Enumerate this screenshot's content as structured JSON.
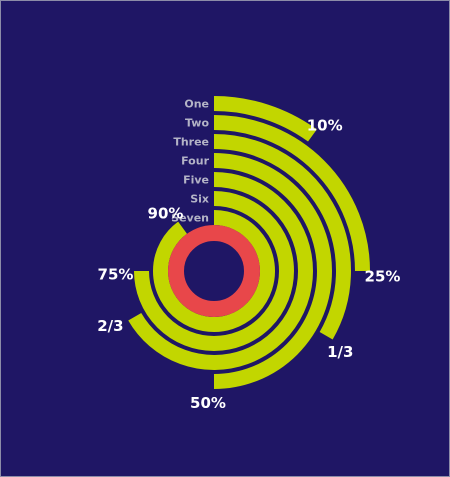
{
  "chart_data": {
    "type": "radial-bar",
    "title": "",
    "categories": [
      "One",
      "Two",
      "Three",
      "Four",
      "Five",
      "Six",
      "Seven"
    ],
    "series": [
      {
        "values": [
          0.1,
          0.25,
          0.3333,
          0.5,
          0.6667,
          0.75,
          0.9
        ]
      }
    ],
    "value_labels": [
      "10%",
      "25%",
      "1/3",
      "50%",
      "2/3",
      "75%",
      "90%"
    ],
    "center_ring": {
      "value": 1.0
    },
    "colors": {
      "bars": "#c2d600",
      "center_ring": "#e8474a",
      "background": "#1f1665",
      "category_text": "#b3b3c6",
      "value_text": "#ffffff"
    }
  }
}
